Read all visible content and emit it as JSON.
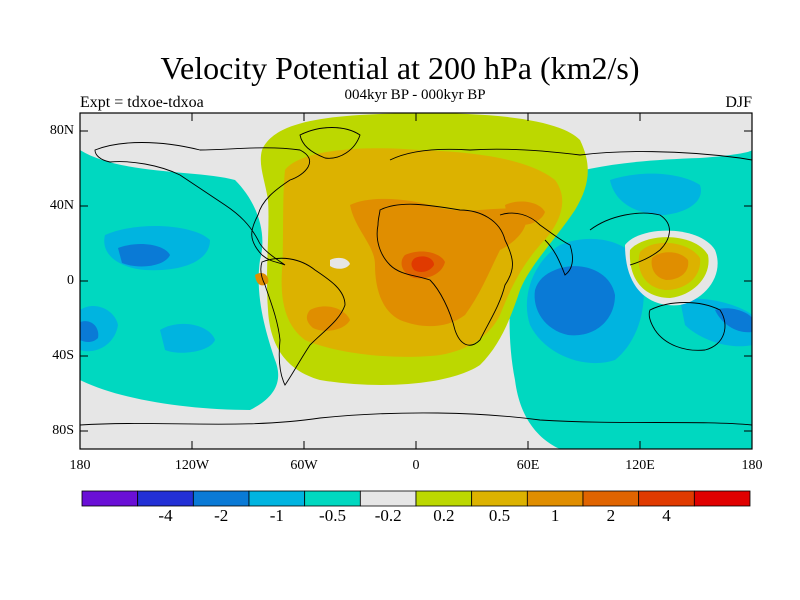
{
  "title": "Velocity Potential at 200 hPa (km2/s)",
  "subtitle": "004kyr BP - 000kyr BP",
  "left_label": "Expt = tdxoe-tdxoa",
  "right_label": "DJF",
  "lat_labels": [
    "80N",
    "40N",
    "0",
    "40S",
    "80S"
  ],
  "lon_labels": [
    "180",
    "120W",
    "60W",
    "0",
    "60E",
    "120E",
    "180"
  ],
  "colorbar": {
    "colors": [
      "#6a0fd6",
      "#2330d6",
      "#0a7ad6",
      "#00b4e0",
      "#00d8c0",
      "#e6e6e6",
      "#bcd800",
      "#dcb200",
      "#e08e00",
      "#e06400",
      "#e03a00",
      "#e00000"
    ],
    "labels": [
      "-4",
      "-2",
      "-1",
      "-0.5",
      "-0.2",
      "0.2",
      "0.5",
      "1",
      "2",
      "4"
    ]
  }
}
